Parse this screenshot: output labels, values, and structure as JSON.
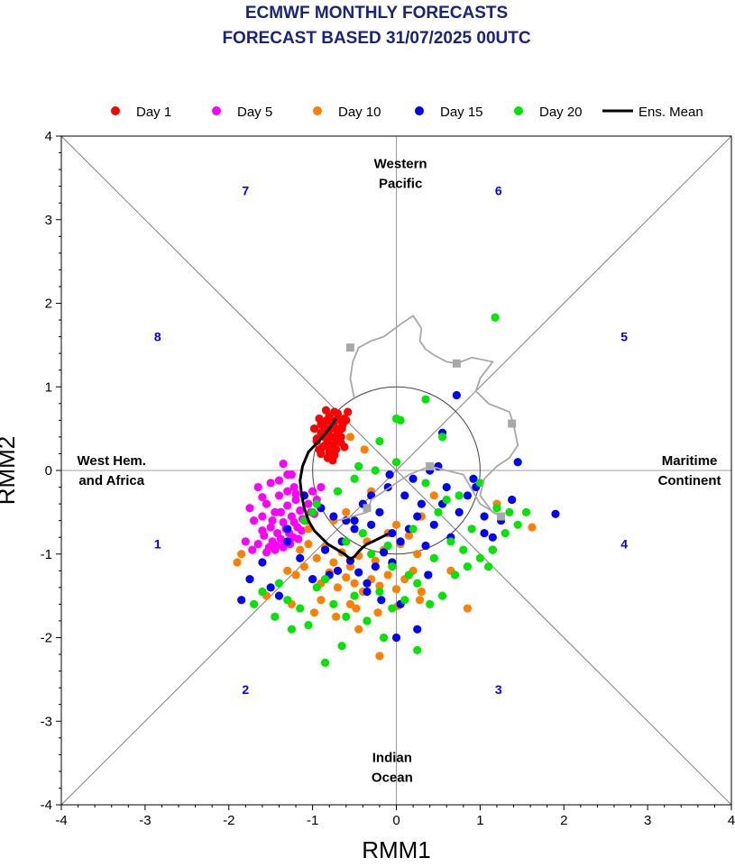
{
  "chart_data": {
    "type": "scatter",
    "title": [
      "ECMWF MONTHLY FORECASTS",
      "FORECAST  BASED 31/07/2025 00UTC"
    ],
    "xlabel": "RMM1",
    "ylabel": "RMM2",
    "xlim": [
      -4,
      4
    ],
    "ylim": [
      -4,
      4
    ],
    "xticks": [
      "-4",
      "-3",
      "-2",
      "-1",
      "0",
      "1",
      "2",
      "3",
      "4"
    ],
    "yticks": [
      "-4",
      "-3",
      "-2",
      "-1",
      "0",
      "1",
      "2",
      "3",
      "4"
    ],
    "grid": false,
    "legend_position": "top",
    "legend": [
      {
        "label": "Day 1",
        "color": "#ff0000",
        "marker": "dot"
      },
      {
        "label": "Day 5",
        "color": "#ff00ff",
        "marker": "dot"
      },
      {
        "label": "Day 10",
        "color": "#ff8000",
        "marker": "dot"
      },
      {
        "label": "Day 15",
        "color": "#0000ff",
        "marker": "dot"
      },
      {
        "label": "Day 20",
        "color": "#00e600",
        "marker": "dot"
      },
      {
        "label": "Ens. Mean",
        "color": "#000000",
        "marker": "line"
      }
    ],
    "region_labels": [
      {
        "text": [
          "Western",
          "Pacific"
        ],
        "x": 0.05,
        "y": 3.55
      },
      {
        "text": [
          "West Hem.",
          "and Africa"
        ],
        "x": -3.4,
        "y": 0.0
      },
      {
        "text": [
          "Maritime",
          "Continent"
        ],
        "x": 3.5,
        "y": 0.0
      },
      {
        "text": [
          "Indian",
          "Ocean"
        ],
        "x": -0.05,
        "y": -3.55
      }
    ],
    "phase_labels": [
      {
        "text": "1",
        "x": -2.85,
        "y": -0.88
      },
      {
        "text": "2",
        "x": -1.8,
        "y": -2.62
      },
      {
        "text": "3",
        "x": 1.22,
        "y": -2.62
      },
      {
        "text": "4",
        "x": 2.72,
        "y": -0.88
      },
      {
        "text": "5",
        "x": 2.72,
        "y": 1.6
      },
      {
        "text": "6",
        "x": 1.22,
        "y": 3.35
      },
      {
        "text": "7",
        "x": -1.8,
        "y": 3.35
      },
      {
        "text": "8",
        "x": -2.85,
        "y": 1.6
      }
    ],
    "colors": {
      "axis_text": "#000000",
      "phase_text": "#0000ff",
      "title": "#1a237e",
      "observed": "#a8a8a8",
      "guides": "#808080"
    },
    "observed": {
      "name": "",
      "x": [
        -0.5,
        -0.55,
        -0.52,
        -0.45,
        -0.3,
        -0.15,
        0.05,
        0.2,
        0.3,
        0.28,
        0.35,
        0.45,
        0.6,
        0.72,
        0.9,
        1.15,
        1.0,
        0.95,
        1.1,
        1.35,
        1.4,
        1.45,
        1.35,
        1.2,
        1.05,
        1.0,
        1.15,
        1.25,
        1.0,
        0.8,
        0.4,
        0.15,
        -0.3,
        -0.35,
        -0.7
      ],
      "y": [
        0.85,
        1.1,
        1.3,
        1.47,
        1.55,
        1.6,
        1.75,
        1.85,
        1.7,
        1.55,
        1.45,
        1.38,
        1.3,
        1.28,
        1.35,
        1.3,
        1.1,
        0.95,
        0.8,
        0.7,
        0.55,
        0.3,
        0.15,
        0.05,
        -0.1,
        -0.3,
        -0.5,
        -0.55,
        -0.4,
        -0.05,
        0.05,
        -0.05,
        -0.35,
        -0.5,
        -0.6
      ],
      "square_markers": [
        [
          -0.55,
          1.47
        ],
        [
          0.72,
          1.28
        ],
        [
          1.38,
          0.56
        ],
        [
          1.25,
          -0.55
        ],
        [
          0.4,
          0.05
        ],
        [
          -0.35,
          -0.45
        ]
      ]
    },
    "ens_mean": {
      "x": [
        -0.72,
        -0.8,
        -0.9,
        -1.05,
        -1.12,
        -1.15,
        -1.13,
        -1.1,
        -1.05,
        -0.98,
        -0.9,
        -0.82,
        -0.72,
        -0.62,
        -0.55,
        -0.5,
        -0.45,
        -0.4,
        -0.35,
        -0.28,
        -0.18,
        -0.1
      ],
      "y": [
        0.62,
        0.5,
        0.38,
        0.22,
        0.05,
        -0.12,
        -0.3,
        -0.45,
        -0.6,
        -0.72,
        -0.8,
        -0.88,
        -0.94,
        -1.0,
        -1.06,
        -1.03,
        -0.97,
        -0.92,
        -0.88,
        -0.85,
        -0.8,
        -0.76
      ]
    },
    "series": [
      {
        "name": "Day 1",
        "color": "#ff0000",
        "x": [
          -0.98,
          -0.95,
          -0.92,
          -0.9,
          -0.88,
          -0.85,
          -0.83,
          -0.8,
          -0.78,
          -0.76,
          -0.74,
          -0.72,
          -0.7,
          -0.68,
          -0.66,
          -0.64,
          -0.62,
          -0.6,
          -0.58,
          -0.95,
          -0.9,
          -0.85,
          -0.8,
          -0.75,
          -0.7,
          -0.65,
          -0.62,
          -0.88,
          -0.82,
          -0.78,
          -0.72,
          -0.68,
          -0.92,
          -0.86,
          -0.8,
          -0.74,
          -0.7,
          -0.66,
          -0.84,
          -0.78,
          -0.76,
          -0.72,
          -0.82,
          -0.9,
          -0.86,
          -0.8,
          -0.74
        ],
        "y": [
          0.5,
          0.35,
          0.62,
          0.2,
          0.45,
          0.3,
          0.6,
          0.4,
          0.25,
          0.55,
          0.7,
          0.35,
          0.5,
          0.62,
          0.4,
          0.55,
          0.28,
          0.6,
          0.7,
          0.38,
          0.55,
          0.45,
          0.65,
          0.3,
          0.45,
          0.5,
          0.62,
          0.28,
          0.35,
          0.5,
          0.6,
          0.42,
          0.25,
          0.52,
          0.22,
          0.18,
          0.68,
          0.33,
          0.72,
          0.58,
          0.12,
          0.25,
          0.15,
          0.45,
          0.4,
          0.48,
          0.4
        ]
      },
      {
        "name": "Day 5",
        "color": "#ff00ff",
        "x": [
          -1.75,
          -1.55,
          -1.4,
          -1.3,
          -1.2,
          -1.6,
          -1.45,
          -1.35,
          -1.25,
          -1.15,
          -1.05,
          -1.5,
          -1.42,
          -1.32,
          -1.22,
          -1.12,
          -1.02,
          -1.7,
          -1.58,
          -1.48,
          -1.38,
          -1.28,
          -1.18,
          -1.08,
          -0.98,
          -1.65,
          -1.52,
          -1.43,
          -1.33,
          -1.23,
          -1.13,
          -1.55,
          -1.45,
          -1.35,
          -1.27,
          -1.17,
          -1.6,
          -1.48,
          -1.38,
          -1.3,
          -1.22,
          -1.4,
          -1.3,
          -1.2,
          -1.1,
          -1.35,
          -1.5,
          -1.72,
          -1.8,
          -1.25,
          -0.9,
          -0.95,
          -1.0,
          -1.6,
          -1.65
        ],
        "y": [
          -0.45,
          -0.4,
          -0.3,
          -0.42,
          -0.35,
          -0.55,
          -0.5,
          -0.62,
          -0.55,
          -0.48,
          -0.4,
          -0.68,
          -0.75,
          -0.7,
          -0.62,
          -0.58,
          -0.5,
          -0.6,
          -0.78,
          -0.85,
          -0.82,
          -0.75,
          -0.68,
          -0.6,
          -0.52,
          -0.88,
          -0.92,
          -0.9,
          -0.86,
          -0.8,
          -0.72,
          -0.98,
          -0.95,
          -0.92,
          -0.88,
          -0.82,
          -0.72,
          -0.6,
          -0.5,
          -0.25,
          -0.2,
          -0.12,
          -0.05,
          -0.28,
          -0.3,
          0.08,
          -0.15,
          -0.95,
          -0.85,
          -0.05,
          -0.2,
          -0.35,
          -0.25,
          -0.32,
          -0.2
        ]
      },
      {
        "name": "Day 10",
        "color": "#ff8000",
        "x": [
          -1.3,
          -1.2,
          -1.1,
          -1.0,
          -0.9,
          -0.8,
          -0.7,
          -0.6,
          -0.5,
          -0.4,
          -0.3,
          -0.2,
          -0.1,
          0.0,
          0.1,
          0.2,
          0.3,
          -1.15,
          -1.05,
          -0.95,
          -0.85,
          -0.75,
          -0.65,
          -0.55,
          -0.45,
          -0.35,
          -0.25,
          -0.15,
          -0.05,
          0.05,
          0.15,
          0.25,
          -1.25,
          -0.98,
          -0.72,
          -0.48,
          -0.22,
          0.02,
          0.28,
          -0.6,
          -0.3,
          0.0,
          0.45,
          -0.55,
          -0.38,
          -1.55,
          -1.85,
          0.85,
          1.62,
          1.2,
          -0.2,
          -0.35,
          -0.1,
          0.3,
          -0.45,
          -1.05,
          -0.75,
          0.65,
          -1.9,
          -0.9,
          -0.55
        ],
        "y": [
          -1.2,
          -1.25,
          -1.15,
          -1.3,
          -1.35,
          -1.22,
          -1.4,
          -1.28,
          -1.35,
          -1.45,
          -1.3,
          -1.38,
          -1.25,
          -1.42,
          -1.3,
          -1.2,
          -1.45,
          -0.95,
          -0.88,
          -1.05,
          -0.92,
          -1.1,
          -0.98,
          -1.15,
          -1.02,
          -0.85,
          -1.08,
          -0.95,
          -1.12,
          -0.88,
          -0.78,
          -1.0,
          -1.6,
          -1.7,
          -1.75,
          -1.65,
          -1.7,
          -1.62,
          -1.55,
          -0.5,
          -0.25,
          -0.65,
          -0.3,
          0.4,
          0.25,
          -1.5,
          -1.0,
          -1.65,
          -0.68,
          -0.4,
          -2.22,
          -1.8,
          -0.75,
          -0.55,
          -1.9,
          -0.7,
          -0.6,
          -1.2,
          -1.1,
          -1.55,
          -1.6
        ]
      },
      {
        "name": "Day 15",
        "color": "#0000ff",
        "x": [
          -1.85,
          -1.75,
          -1.6,
          -1.5,
          -1.3,
          -1.15,
          -1.0,
          -0.85,
          -0.7,
          -0.55,
          -0.45,
          -0.35,
          -0.25,
          -0.15,
          -0.05,
          0.05,
          0.15,
          0.25,
          0.35,
          0.45,
          0.55,
          0.65,
          0.75,
          0.85,
          0.95,
          1.05,
          1.15,
          1.25,
          1.38,
          1.45,
          1.9,
          -0.6,
          -0.5,
          -0.4,
          -0.3,
          -0.2,
          -0.1,
          0.1,
          0.2,
          0.3,
          0.4,
          0.5,
          0.6,
          -1.1,
          -0.9,
          -0.75,
          -0.05,
          -0.3,
          0.72,
          -0.65,
          -0.18,
          0.25,
          0.55,
          1.15,
          0.0,
          -0.35,
          -0.8,
          -1.3,
          -1.4,
          1.05,
          0.38,
          0.05,
          -0.08,
          -0.5,
          0.92
        ],
        "y": [
          -1.55,
          -1.3,
          -1.1,
          -1.4,
          -0.85,
          -1.05,
          -1.3,
          -0.95,
          -1.2,
          -1.08,
          -1.22,
          -1.35,
          -1.15,
          -0.98,
          -1.1,
          -0.85,
          -0.7,
          -0.55,
          -0.9,
          -0.65,
          -0.4,
          -0.8,
          -0.5,
          -0.3,
          -0.2,
          -0.55,
          -0.8,
          -0.6,
          -0.35,
          0.1,
          -0.52,
          -0.6,
          -0.7,
          -0.4,
          -0.3,
          -0.5,
          -0.2,
          -0.3,
          -0.1,
          -0.4,
          0.0,
          0.05,
          -0.2,
          -0.3,
          -0.45,
          -0.55,
          -0.75,
          -0.65,
          0.9,
          -0.85,
          -1.55,
          -1.9,
          0.45,
          -0.95,
          -2.0,
          -1.45,
          -1.25,
          -0.7,
          -1.5,
          -0.75,
          -1.25,
          -1.6,
          -0.05,
          -0.6,
          -0.1
        ]
      },
      {
        "name": "Day 20",
        "color": "#00e600",
        "x": [
          -1.7,
          -1.6,
          -1.45,
          -1.3,
          -1.15,
          -1.05,
          -0.95,
          -0.85,
          -0.75,
          -0.6,
          -0.5,
          -0.35,
          -0.2,
          -0.05,
          0.1,
          0.25,
          0.4,
          0.55,
          0.7,
          0.85,
          1.0,
          1.15,
          1.3,
          1.45,
          1.55,
          -1.1,
          -0.95,
          -0.7,
          -0.5,
          -0.25,
          0.0,
          0.35,
          0.6,
          -0.6,
          -0.4,
          -0.1,
          0.2,
          0.5,
          0.75,
          1.0,
          -0.3,
          -0.05,
          0.15,
          0.45,
          0.65,
          0.9,
          1.2,
          1.35,
          1.18,
          0.05,
          -0.45,
          -1.4,
          0.35,
          -0.65,
          0.25,
          -0.85,
          0.55,
          -0.15,
          0.0,
          -1.0,
          -0.2,
          0.8,
          -1.25,
          1.1
        ],
        "y": [
          -1.6,
          -1.45,
          -1.75,
          -1.55,
          -1.65,
          -1.85,
          -1.4,
          -1.3,
          -1.6,
          -1.75,
          -1.5,
          -1.8,
          -1.45,
          -1.65,
          -1.55,
          -1.35,
          -1.6,
          -1.5,
          -1.25,
          -1.15,
          -1.05,
          -0.95,
          -0.75,
          -0.65,
          -0.5,
          -0.6,
          -0.4,
          -0.25,
          -0.1,
          0.0,
          0.1,
          -0.15,
          -0.35,
          -0.85,
          -0.75,
          -0.9,
          -0.7,
          -0.5,
          -0.3,
          -0.15,
          -1.0,
          -1.15,
          -1.25,
          -1.05,
          -0.85,
          -0.7,
          -0.45,
          -0.5,
          1.83,
          0.6,
          0.05,
          -1.35,
          0.85,
          -2.1,
          -2.15,
          -2.3,
          0.4,
          -2.0,
          0.62,
          -0.5,
          0.35,
          -0.95,
          -1.9,
          -1.15
        ]
      }
    ]
  }
}
